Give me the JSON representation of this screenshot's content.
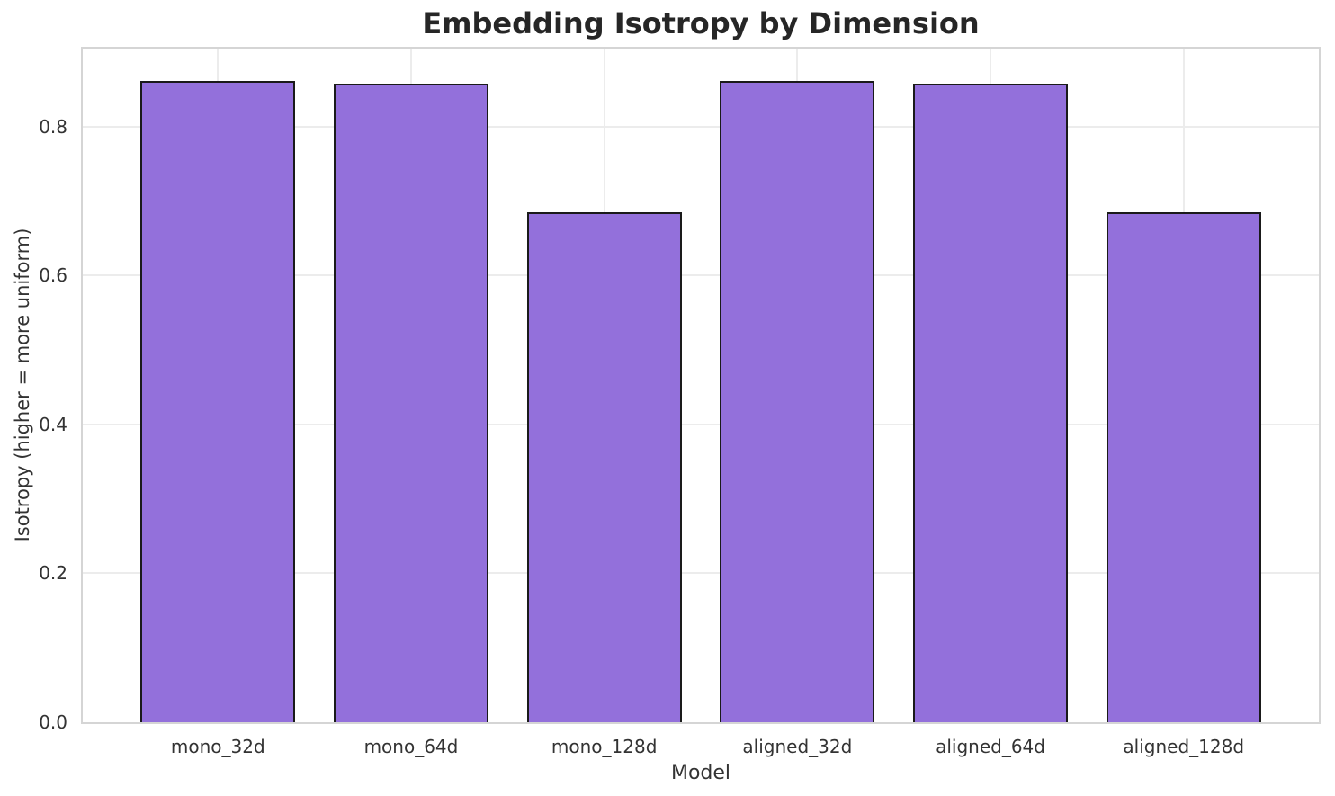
{
  "figure": {
    "background": "#ffffff"
  },
  "chart_data": {
    "type": "bar",
    "title": "Embedding Isotropy by Dimension",
    "xlabel": "Model",
    "ylabel": "Isotropy (higher = more uniform)",
    "categories": [
      "mono_32d",
      "mono_64d",
      "mono_128d",
      "aligned_32d",
      "aligned_64d",
      "aligned_128d"
    ],
    "values": [
      0.862,
      0.858,
      0.685,
      0.862,
      0.858,
      0.685
    ],
    "ylim": [
      0,
      0.905
    ],
    "xlim": [
      -0.7,
      5.7
    ],
    "yticks": [
      0.0,
      0.2,
      0.4,
      0.6,
      0.8
    ],
    "ytick_labels": [
      "0.0",
      "0.2",
      "0.4",
      "0.6",
      "0.8"
    ],
    "bar_width_units": 0.8,
    "grid": true,
    "legend": null,
    "colors": {
      "bar_fill": "#9370db",
      "bar_edge": "#1a1a1a",
      "grid": "#ececec",
      "spine": "#d5d5d5",
      "tick_text": "#333333",
      "title_text": "#262626"
    }
  }
}
